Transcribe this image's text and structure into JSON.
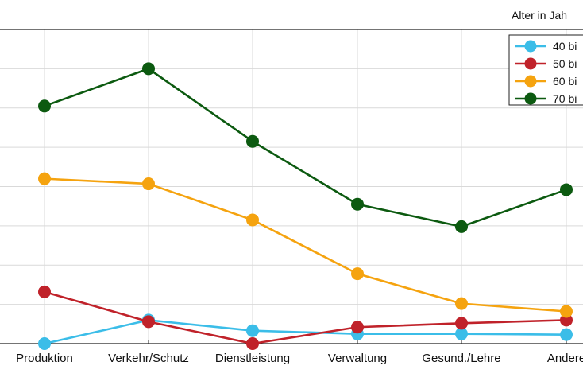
{
  "chart_data": {
    "type": "line",
    "legend_title": "Alter in Jah",
    "categories": [
      "Produktion",
      "Verkehr/Schutz",
      "Dienstleistung",
      "Verwaltung",
      "Gesund./Lehre",
      "Andere"
    ],
    "series": [
      {
        "name": "40 bi",
        "color": "#3bbde8",
        "values": [
          0.0,
          0.6,
          0.33,
          0.25,
          0.25,
          0.23
        ]
      },
      {
        "name": "50 bi",
        "color": "#c0222a",
        "values": [
          1.32,
          0.56,
          0.0,
          0.42,
          0.52,
          0.6
        ]
      },
      {
        "name": "60 bi",
        "color": "#f5a30f",
        "values": [
          4.2,
          4.07,
          3.15,
          1.78,
          1.02,
          0.82
        ]
      },
      {
        "name": "70 bi",
        "color": "#0c5a10",
        "values": [
          6.05,
          7.0,
          5.15,
          3.55,
          2.98,
          3.92
        ]
      }
    ],
    "ylim": [
      0,
      8
    ],
    "grid": true,
    "legend_position": "top-right"
  }
}
